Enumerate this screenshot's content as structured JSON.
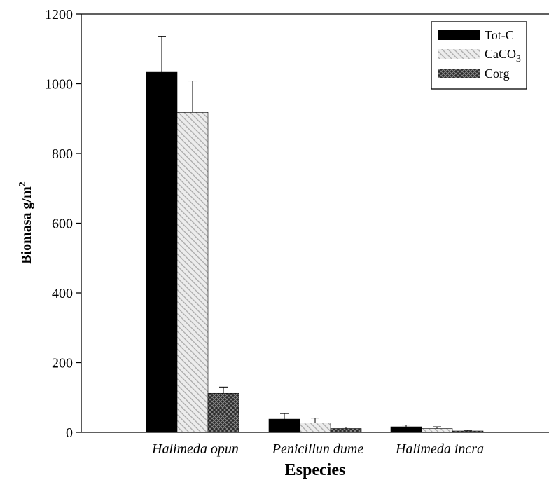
{
  "chart_data": {
    "type": "bar",
    "xlabel": "Especies",
    "ylabel": "Biomasa g/m",
    "ylabel_sup": "2",
    "ylim": [
      0,
      1200
    ],
    "yticks": [
      "0",
      "200",
      "400",
      "600",
      "800",
      "1000",
      "1200"
    ],
    "categories": [
      "Halimeda opun",
      "Penicillun dume",
      "Halimeda incra"
    ],
    "legend_position": "top-right",
    "series": [
      {
        "name": "Tot-C",
        "values": [
          1033,
          38,
          16
        ],
        "error": [
          102,
          16,
          5
        ],
        "fill": "solid",
        "color": "#000000"
      },
      {
        "name": "CaCO",
        "name_sub": "3",
        "values": [
          918,
          27,
          11
        ],
        "error": [
          90,
          14,
          5
        ],
        "fill": "diagonal",
        "color": "#bdbdbd"
      },
      {
        "name": "Corg",
        "values": [
          112,
          11,
          4
        ],
        "error": [
          18,
          4,
          2
        ],
        "fill": "crosshatch",
        "color": "#555555"
      }
    ]
  }
}
